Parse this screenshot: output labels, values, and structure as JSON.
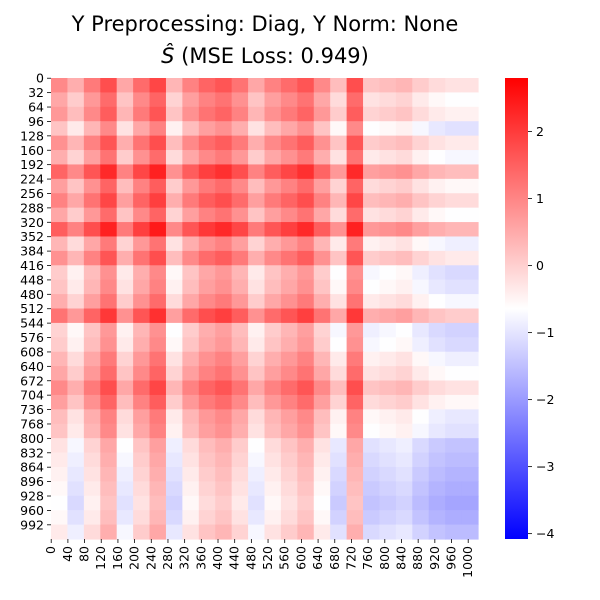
{
  "chart_data": {
    "type": "heatmap",
    "title_line1": "Y Preprocessing: Diag, Y Norm: None",
    "title_line2_prefix": "(MSE Loss: 0.949)",
    "title_line2_symbol": "Ŝ",
    "x_ticks": [
      "0",
      "40",
      "80",
      "120",
      "160",
      "200",
      "240",
      "280",
      "320",
      "360",
      "400",
      "440",
      "480",
      "520",
      "560",
      "600",
      "640",
      "680",
      "720",
      "760",
      "800",
      "840",
      "880",
      "920",
      "960",
      "1000"
    ],
    "y_ticks": [
      "0",
      "32",
      "64",
      "96",
      "128",
      "160",
      "192",
      "224",
      "256",
      "288",
      "320",
      "352",
      "384",
      "416",
      "448",
      "480",
      "512",
      "544",
      "576",
      "608",
      "640",
      "672",
      "704",
      "736",
      "768",
      "800",
      "832",
      "864",
      "896",
      "928",
      "960",
      "992"
    ],
    "colorbar": {
      "ticks": [
        "2",
        "1",
        "0",
        "−1",
        "−2",
        "−3",
        "−4"
      ],
      "tick_values": [
        2,
        1,
        0,
        -1,
        -2,
        -3,
        -4
      ],
      "vmin": -4.08,
      "vmax": 2.8,
      "colormap": "bwr",
      "center": -0.64
    },
    "n_rows": 1024,
    "n_cols": 1024,
    "row_pattern_values": [
      0.6,
      0.2,
      0.4,
      -0.2,
      0.5,
      0.1,
      1.1,
      0.3,
      0.7,
      0.2,
      1.2,
      0.0,
      0.5,
      -0.3,
      -0.2,
      0.1,
      0.9,
      -0.4,
      -0.3,
      0.0,
      0.2,
      0.6,
      0.3,
      -0.1,
      -0.2,
      -0.6,
      -0.7,
      -0.8,
      -0.9,
      -1.0,
      -0.9,
      -0.7
    ],
    "col_pattern_values": [
      0.2,
      -0.3,
      0.4,
      1.0,
      -0.2,
      0.6,
      1.1,
      -0.4,
      0.3,
      0.7,
      0.9,
      0.5,
      -0.2,
      0.3,
      0.6,
      0.9,
      0.2,
      -0.5,
      1.0,
      -0.6,
      -0.5,
      -0.4,
      -0.7,
      -0.9,
      -1.0,
      -1.0
    ]
  }
}
